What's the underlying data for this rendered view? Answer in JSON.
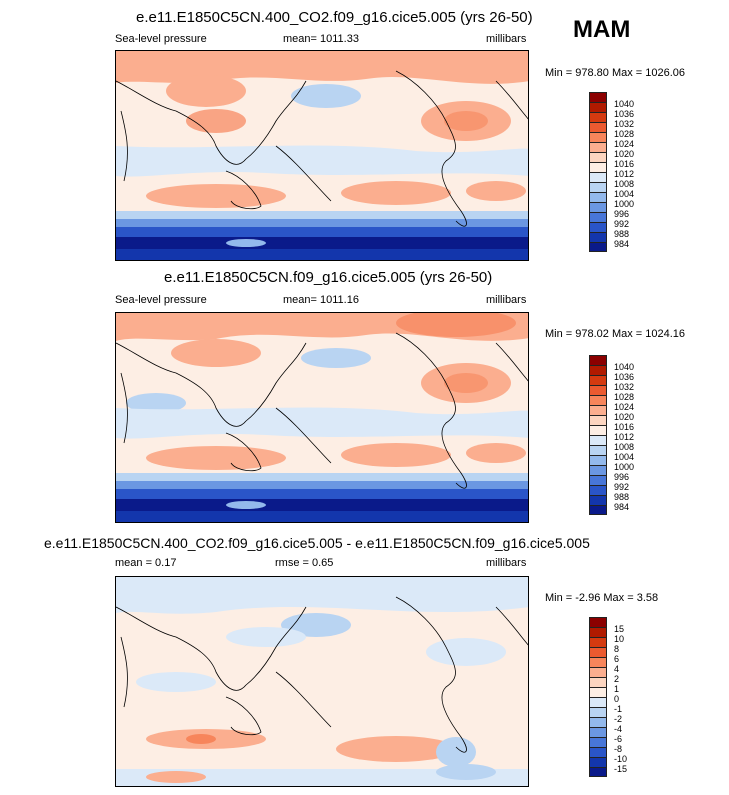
{
  "season": "MAM",
  "panels": [
    {
      "title": "e.e11.E1850C5CN.400_CO2.f09_g16.cice5.005 (yrs 26-50)",
      "left_label": "Sea-level pressure",
      "center_label": "mean= 1011.33",
      "units": "millibars",
      "minmax": "Min = 978.80 Max = 1026.06",
      "colorbar": {
        "labels": [
          "1040",
          "1036",
          "1032",
          "1028",
          "1024",
          "1020",
          "1016",
          "1012",
          "1008",
          "1004",
          "1000",
          "996",
          "992",
          "988",
          "984"
        ],
        "colors": [
          "#8b0000",
          "#b01a00",
          "#d43a10",
          "#eb5a30",
          "#f7855b",
          "#fbae8f",
          "#fcd5c0",
          "#fdeee4",
          "#dbe9f8",
          "#b9d4f2",
          "#93b9ec",
          "#6b97e2",
          "#4876d8",
          "#2a55c8",
          "#1336ac",
          "#0a1a8a"
        ]
      }
    },
    {
      "title": "e.e11.E1850C5CN.f09_g16.cice5.005 (yrs 26-50)",
      "left_label": "Sea-level pressure",
      "center_label": "mean= 1011.16",
      "units": "millibars",
      "minmax": "Min = 978.02 Max = 1024.16",
      "colorbar": {
        "labels": [
          "1040",
          "1036",
          "1032",
          "1028",
          "1024",
          "1020",
          "1016",
          "1012",
          "1008",
          "1004",
          "1000",
          "996",
          "992",
          "988",
          "984"
        ],
        "colors": [
          "#8b0000",
          "#b01a00",
          "#d43a10",
          "#eb5a30",
          "#f7855b",
          "#fbae8f",
          "#fcd5c0",
          "#fdeee4",
          "#dbe9f8",
          "#b9d4f2",
          "#93b9ec",
          "#6b97e2",
          "#4876d8",
          "#2a55c8",
          "#1336ac",
          "#0a1a8a"
        ]
      }
    },
    {
      "title": "e.e11.E1850C5CN.400_CO2.f09_g16.cice5.005 - e.e11.E1850C5CN.f09_g16.cice5.005",
      "left_label": "mean =   0.17",
      "center_label": "rmse =    0.65",
      "units": "millibars",
      "minmax": "Min =  -2.96 Max =   3.58",
      "colorbar": {
        "labels": [
          "15",
          "10",
          "8",
          "6",
          "4",
          "2",
          "1",
          "0",
          "-1",
          "-2",
          "-4",
          "-6",
          "-8",
          "-10",
          "-15"
        ],
        "colors": [
          "#8b0000",
          "#b01a00",
          "#d43a10",
          "#eb5a30",
          "#f7855b",
          "#fbae8f",
          "#fcd5c0",
          "#fdeee4",
          "#dbe9f8",
          "#b9d4f2",
          "#93b9ec",
          "#6b97e2",
          "#4876d8",
          "#2a55c8",
          "#1336ac",
          "#0a1a8a"
        ]
      }
    }
  ]
}
